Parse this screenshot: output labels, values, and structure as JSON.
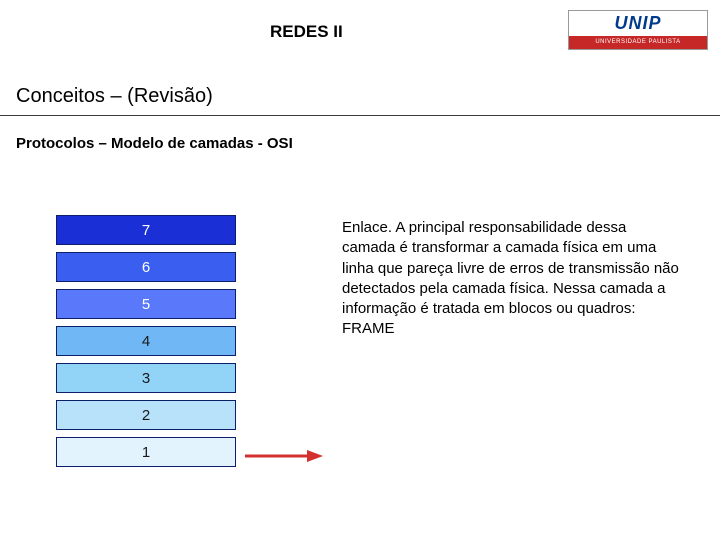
{
  "header": {
    "title": "REDES II",
    "logo_text": "UNIP",
    "logo_sub": "UNIVERSIDADE PAULISTA",
    "logo_text_color": "#003a8c",
    "logo_bar_color": "#c62828"
  },
  "subtitle": "Conceitos – (Revisão)",
  "section_heading": "Protocolos – Modelo de camadas - OSI",
  "divider_color": "#3a3a3a",
  "layers": [
    {
      "label": "7",
      "bg": "#1b2fd6",
      "text_color": "#ffffff"
    },
    {
      "label": "6",
      "bg": "#3a5ef0",
      "text_color": "#ffffff"
    },
    {
      "label": "5",
      "bg": "#5a79fa",
      "text_color": "#ffffff"
    },
    {
      "label": "4",
      "bg": "#6fb8f5",
      "text_color": "#1a1a1a"
    },
    {
      "label": "3",
      "bg": "#92d4f7",
      "text_color": "#1a1a1a"
    },
    {
      "label": "2",
      "bg": "#b7e2fa",
      "text_color": "#1a1a1a"
    },
    {
      "label": "1",
      "bg": "#e3f3fd",
      "text_color": "#1a1a1a"
    }
  ],
  "layer_style": {
    "width": 180,
    "height": 30,
    "border_color": "#0b1f6b",
    "gap": 7,
    "font_size": 15
  },
  "arrow": {
    "color": "#d32f2f",
    "points_to_layer_index": 5
  },
  "description": "Enlace. A principal responsabilidade dessa camada é transformar a camada física em uma linha que pareça livre de erros de transmissão não detectados pela camada física. Nessa camada a informação é tratada em blocos ou quadros: FRAME",
  "description_style": {
    "font_size": 15,
    "color": "#000000"
  }
}
